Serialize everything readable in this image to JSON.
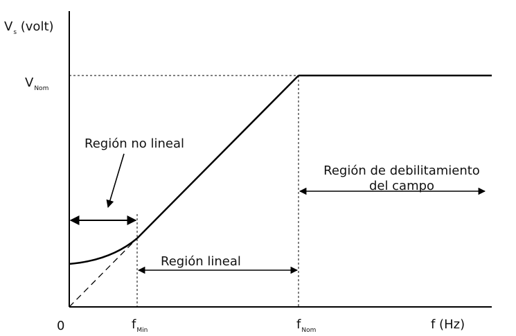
{
  "diagram": {
    "y_axis_label": {
      "main": "V",
      "sub": "s",
      "rest": " (volt)"
    },
    "y_tick_vnom": {
      "main": "V",
      "sub": "Nom"
    },
    "x_tick_zero": "0",
    "x_tick_fmin": {
      "main": "f",
      "sub": "Min"
    },
    "x_tick_fnom": {
      "main": "f",
      "sub": "Nom"
    },
    "x_axis_label": "f (Hz)",
    "region_nonlinear": "Región no lineal",
    "region_linear": "Región lineal",
    "region_weakening_line1": "Región de debilitamiento",
    "region_weakening_line2": "del campo"
  }
}
